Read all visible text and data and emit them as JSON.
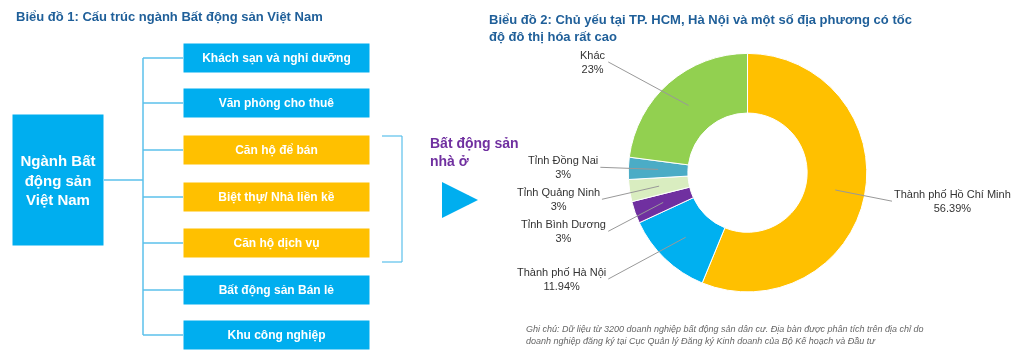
{
  "chart_data": [
    {
      "type": "other",
      "title": "Biểu đồ 1: Cấu trúc ngành Bất động sản Việt Nam",
      "annotations": [
        "Ngành Bất động sản Việt Nam",
        "Khách sạn và nghỉ dưỡng",
        "Văn phòng cho thuê",
        "Căn hộ để bán",
        "Biệt thự/ Nhà liền kề",
        "Căn hộ dịch vụ",
        "Bất động sản Bán lẻ",
        "Khu công nghiệp",
        "Bất động sản nhà ở"
      ]
    },
    {
      "type": "donut",
      "title": "Biểu đồ 2: Chủ yếu tại TP. HCM, Hà Nội và một số địa phương có tốc độ đô thị hóa rất cao",
      "categories": [
        "Thành phố Hồ Chí Minh",
        "Thành phố Hà Nội",
        "Tỉnh Bình Dương",
        "Tỉnh Quảng Ninh",
        "Tỉnh Đồng Nai",
        "Khác"
      ],
      "values": [
        56.39,
        11.94,
        3,
        3,
        3,
        23
      ],
      "value_labels": [
        "56.39%",
        "11.94%",
        "3%",
        "3%",
        "3%",
        "23%"
      ],
      "colors": [
        "#ffc000",
        "#00b0f0",
        "#7030a0",
        "#d9edc0",
        "#4bacc6",
        "#92d050"
      ],
      "annotations": [
        "Ghi chú: Dữ liệu từ 3200 doanh nghiệp bất động sản dân cư. Địa bàn được phân tích trên địa chỉ do doanh nghiệp đăng ký tại Cục Quản lý Đăng ký Kinh doanh của Bộ Kế hoạch và Đầu tư"
      ]
    }
  ]
}
